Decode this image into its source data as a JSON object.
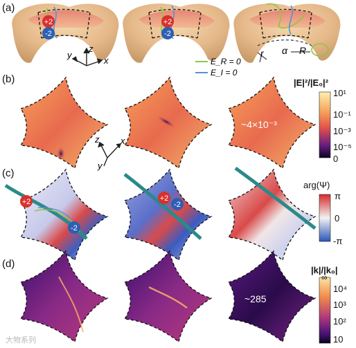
{
  "panel_labels": [
    "(a)",
    "(b)",
    "(c)",
    "(d)"
  ],
  "charges": {
    "plus": "+2",
    "minus": "-2"
  },
  "axes_a": {
    "x": "x",
    "y": "y",
    "z": "z"
  },
  "axes_b": {
    "x": "x",
    "y": "y",
    "z": "z"
  },
  "torus_params": {
    "r": "r",
    "alpha": "α",
    "R": "R"
  },
  "legend_a": {
    "green": "E_R = 0",
    "blue": "E_I = 0"
  },
  "colors": {
    "green_line": "#8cc63f",
    "blue_line": "#5b8fd1",
    "red_charge": "#d9302c",
    "blue_charge": "#2d5fb3",
    "vortex_line": "#2a8a8a"
  },
  "colorbar_b": {
    "title": "|E|²/|E₀|²",
    "ticks": [
      "10¹",
      "10⁻¹",
      "10⁻³",
      "10⁻⁵",
      "0"
    ]
  },
  "colorbar_c": {
    "title": "arg(Ψ)",
    "ticks": [
      "π",
      "0",
      "-π"
    ]
  },
  "colorbar_d": {
    "title": "|k|/|k₀|",
    "ticks": [
      "∞",
      "10⁴",
      "10³",
      "10²",
      "10"
    ]
  },
  "annotations": {
    "b3": "~4×10⁻³",
    "d3": "~285"
  },
  "watermark": "大物系列"
}
